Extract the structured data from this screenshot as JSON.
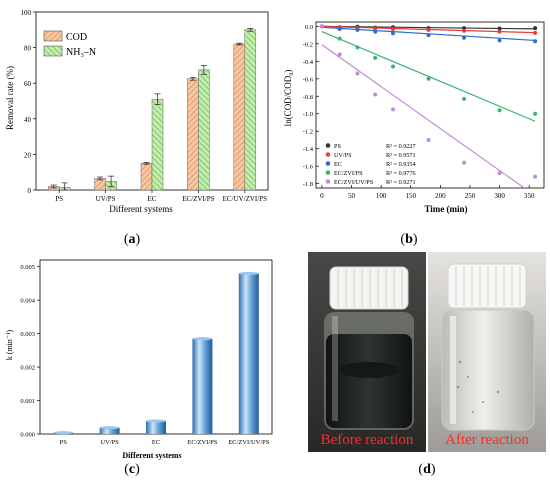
{
  "panel_a": {
    "caption": "a",
    "chart_data": {
      "type": "bar",
      "categories": [
        "PS",
        "UV/PS",
        "EC",
        "EC/ZVI/PS",
        "EC/UV/ZVI/PS"
      ],
      "series": [
        {
          "name": "COD",
          "values": [
            2,
            6.5,
            15,
            62.5,
            82
          ],
          "errors": [
            0.8,
            0.8,
            0.5,
            0.8,
            0.5
          ],
          "color": "#f2b48a",
          "hatch": "orange"
        },
        {
          "name": "NH₃–N",
          "values": [
            1.5,
            4.8,
            51,
            67.5,
            90
          ],
          "errors": [
            2.5,
            3,
            3,
            2.5,
            0.8
          ],
          "color": "#a7dc8c",
          "hatch": "green"
        }
      ],
      "xlabel": "Different systems",
      "ylabel": "Removal rate  (%)",
      "ylim": [
        0,
        100
      ],
      "yticks": [
        "0",
        "20",
        "40",
        "60",
        "80",
        "100"
      ],
      "legend_position": "top-left"
    }
  },
  "panel_b": {
    "caption": "b",
    "chart_data": {
      "type": "scatter",
      "xlabel": "Time  (min)",
      "ylabel": "ln(COD/COD₀)",
      "xlim": [
        -10,
        375
      ],
      "ylim": [
        -1.85,
        0.05
      ],
      "xticks": [
        "0",
        "50",
        "100",
        "150",
        "200",
        "250",
        "300",
        "350"
      ],
      "yticks": [
        "0.0",
        "-0.2",
        "-0.4",
        "-0.6",
        "-0.8",
        "-1.0",
        "-1.2",
        "-1.4",
        "-1.6",
        "-1.8"
      ],
      "series": [
        {
          "name": "PS",
          "r2": "R² = 0.9227",
          "color": "#333333",
          "x": [
            0,
            30,
            60,
            90,
            120,
            180,
            240,
            300,
            360
          ],
          "y": [
            0,
            -0.01,
            -0.005,
            -0.015,
            -0.01,
            -0.02,
            -0.02,
            -0.025,
            -0.02
          ],
          "fit": [
            0,
            -8e-05
          ]
        },
        {
          "name": "UV/PS",
          "r2": "R² = 0.9571",
          "color": "#e83b3b",
          "x": [
            0,
            30,
            60,
            90,
            120,
            180,
            240,
            300,
            360
          ],
          "y": [
            0,
            -0.01,
            -0.02,
            -0.025,
            -0.03,
            -0.04,
            -0.05,
            -0.06,
            -0.075
          ],
          "fit": [
            0,
            -0.0002
          ]
        },
        {
          "name": "EC",
          "r2": "R² = 0.9354",
          "color": "#2f6fcf",
          "x": [
            0,
            30,
            60,
            90,
            120,
            180,
            240,
            300,
            360
          ],
          "y": [
            0,
            -0.03,
            -0.04,
            -0.06,
            -0.08,
            -0.1,
            -0.13,
            -0.16,
            -0.17
          ],
          "fit": [
            -0.01,
            -0.00042
          ]
        },
        {
          "name": "EC/ZVI/PS",
          "r2": "R² = 0.9776",
          "color": "#3cb371",
          "x": [
            0,
            30,
            60,
            90,
            120,
            180,
            240,
            300,
            360
          ],
          "y": [
            0,
            -0.14,
            -0.24,
            -0.36,
            -0.46,
            -0.6,
            -0.83,
            -0.96,
            -1.0
          ],
          "fit": [
            -0.06,
            -0.00285
          ]
        },
        {
          "name": "EC/ZVI/UV/PS",
          "r2": "R² = 0.9271",
          "color": "#c48ad8",
          "x": [
            0,
            30,
            60,
            90,
            120,
            180,
            240,
            300,
            360
          ],
          "y": [
            0,
            -0.32,
            -0.54,
            -0.78,
            -0.95,
            -1.3,
            -1.56,
            -1.68,
            -1.72
          ],
          "fit": [
            -0.21,
            -0.0048
          ]
        }
      ],
      "legend_position": "bottom-left"
    }
  },
  "panel_c": {
    "caption": "c",
    "chart_data": {
      "type": "bar",
      "categories": [
        "PS",
        "UV/PS",
        "EC",
        "EC/ZVI/PS",
        "EC/ZVI/UV/PS"
      ],
      "values": [
        4e-05,
        0.00019,
        0.00039,
        0.00285,
        0.0048
      ],
      "xlabel": "Different systems",
      "ylabel": "k  (min⁻¹)",
      "ylim": [
        0,
        0.0052
      ],
      "yticks": [
        "0.000",
        "0.001",
        "0.002",
        "0.003",
        "0.004",
        "0.005"
      ],
      "color": "#5fa0dc"
    }
  },
  "panel_d": {
    "caption": "d",
    "label_before": "Before reaction",
    "label_after": "After reaction",
    "label_color": "#ff2a2a"
  }
}
